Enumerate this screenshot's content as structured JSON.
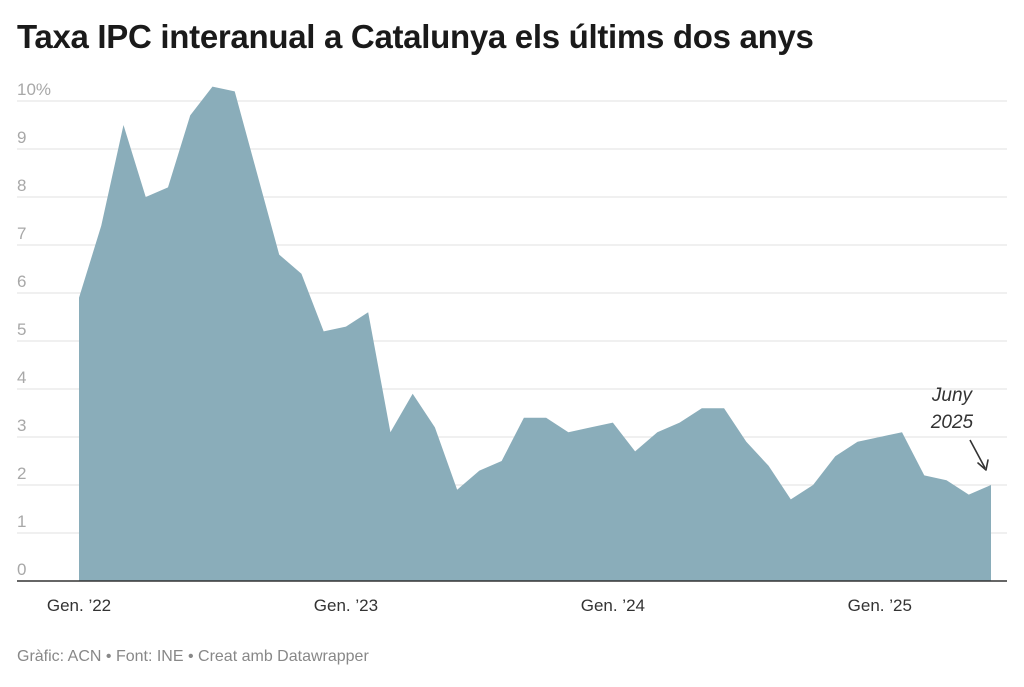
{
  "title": "Taxa IPC interanual a Catalunya els últims dos anys",
  "footer": "Gràfic: ACN • Font: INE • Creat amb Datawrapper",
  "chart_data": {
    "type": "area",
    "title": "Taxa IPC interanual a Catalunya els últims dos anys",
    "xlabel": "",
    "ylabel": "",
    "ylim": [
      0,
      10
    ],
    "grid": true,
    "y_ticks": [
      {
        "value": 0,
        "label": "0"
      },
      {
        "value": 1,
        "label": "1"
      },
      {
        "value": 2,
        "label": "2"
      },
      {
        "value": 3,
        "label": "3"
      },
      {
        "value": 4,
        "label": "4"
      },
      {
        "value": 5,
        "label": "5"
      },
      {
        "value": 6,
        "label": "6"
      },
      {
        "value": 7,
        "label": "7"
      },
      {
        "value": 8,
        "label": "8"
      },
      {
        "value": 9,
        "label": "9"
      },
      {
        "value": 10,
        "label": "10%"
      }
    ],
    "x_ticks": [
      {
        "value": "2022-01",
        "label": "Gen. ’22"
      },
      {
        "value": "2023-01",
        "label": "Gen. ’23"
      },
      {
        "value": "2024-01",
        "label": "Gen. ’24"
      },
      {
        "value": "2025-01",
        "label": "Gen. ’25"
      }
    ],
    "x": [
      "2022-01",
      "2022-02",
      "2022-03",
      "2022-04",
      "2022-05",
      "2022-06",
      "2022-07",
      "2022-08",
      "2022-09",
      "2022-10",
      "2022-11",
      "2022-12",
      "2023-01",
      "2023-02",
      "2023-03",
      "2023-04",
      "2023-05",
      "2023-06",
      "2023-07",
      "2023-08",
      "2023-09",
      "2023-10",
      "2023-11",
      "2023-12",
      "2024-01",
      "2024-02",
      "2024-03",
      "2024-04",
      "2024-05",
      "2024-06",
      "2024-07",
      "2024-08",
      "2024-09",
      "2024-10",
      "2024-11",
      "2024-12",
      "2025-01",
      "2025-02",
      "2025-03",
      "2025-04",
      "2025-05",
      "2025-06"
    ],
    "values": [
      5.9,
      7.4,
      9.5,
      8.0,
      8.2,
      9.7,
      10.3,
      10.2,
      8.5,
      6.8,
      6.4,
      5.2,
      5.3,
      5.6,
      3.1,
      3.9,
      3.2,
      1.9,
      2.3,
      2.5,
      3.4,
      3.4,
      3.1,
      3.2,
      3.3,
      2.7,
      3.1,
      3.3,
      3.6,
      3.6,
      2.9,
      2.4,
      1.7,
      2.0,
      2.6,
      2.9,
      3.0,
      3.1,
      2.2,
      2.1,
      1.8,
      2.0
    ],
    "colors": {
      "area": "#8aadba",
      "grid": "#e0e0e0",
      "baseline": "#333333"
    },
    "annotation": {
      "x": "2025-06",
      "line1": "Juny",
      "line2": "2025"
    }
  }
}
